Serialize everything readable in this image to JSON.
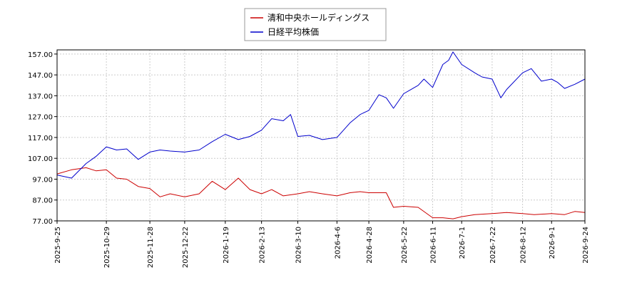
{
  "chart_data": {
    "type": "line",
    "title": "",
    "xlabel": "",
    "ylabel": "",
    "ylim": [
      77.0,
      159.0
    ],
    "yticks": [
      "77.00",
      "87.00",
      "97.00",
      "107.00",
      "117.00",
      "127.00",
      "137.00",
      "147.00",
      "157.00"
    ],
    "ytick_values": [
      77,
      87,
      97,
      107,
      117,
      127,
      137,
      147,
      157
    ],
    "xticks": [
      "2025-9-25",
      "2025-10-29",
      "2025-11-28",
      "2025-12-22",
      "2026-1-19",
      "2026-2-13",
      "2026-3-10",
      "2026-4-6",
      "2026-4-28",
      "2026-5-22",
      "2026-6-11",
      "2026-7-1",
      "2026-7-22",
      "2026-8-12",
      "2026-9-1",
      "2026-9-24"
    ],
    "grid": true,
    "legend_position": "top-center",
    "x_range": [
      "2025-9-25",
      "2026-9-24"
    ],
    "series": [
      {
        "name": "清和中央ホールディングス",
        "color": "#cc0000",
        "x": [
          "2025-9-25",
          "2025-10-5",
          "2025-10-15",
          "2025-10-22",
          "2025-10-29",
          "2025-11-5",
          "2025-11-12",
          "2025-11-20",
          "2025-11-28",
          "2025-12-5",
          "2025-12-12",
          "2025-12-22",
          "2026-1-1",
          "2026-1-10",
          "2026-1-19",
          "2026-1-28",
          "2026-2-5",
          "2026-2-13",
          "2026-2-20",
          "2026-2-28",
          "2026-3-10",
          "2026-3-18",
          "2026-3-27",
          "2026-4-6",
          "2026-4-15",
          "2026-4-22",
          "2026-4-28",
          "2026-5-10",
          "2026-5-15",
          "2026-5-22",
          "2026-6-1",
          "2026-6-11",
          "2026-6-18",
          "2026-6-25",
          "2026-7-1",
          "2026-7-10",
          "2026-7-22",
          "2026-8-1",
          "2026-8-12",
          "2026-8-20",
          "2026-9-1",
          "2026-9-10",
          "2026-9-17",
          "2026-9-24"
        ],
        "values": [
          99.5,
          101.5,
          102.5,
          101.0,
          101.5,
          97.5,
          97.0,
          93.5,
          92.5,
          88.5,
          90.0,
          88.5,
          90.0,
          96.0,
          92.0,
          97.5,
          92.0,
          90.0,
          92.0,
          89.0,
          90.0,
          91.0,
          90.0,
          89.0,
          90.5,
          91.0,
          90.5,
          90.5,
          83.5,
          84.0,
          83.5,
          78.5,
          78.5,
          78.0,
          79.0,
          80.0,
          80.5,
          81.0,
          80.5,
          80.0,
          80.5,
          80.0,
          81.5,
          81.0
        ]
      },
      {
        "name": "日経平均株価",
        "color": "#0000cc",
        "x": [
          "2025-9-25",
          "2025-10-5",
          "2025-10-15",
          "2025-10-22",
          "2025-10-29",
          "2025-11-5",
          "2025-11-12",
          "2025-11-20",
          "2025-11-28",
          "2025-12-5",
          "2025-12-12",
          "2025-12-22",
          "2026-1-1",
          "2026-1-10",
          "2026-1-19",
          "2026-1-28",
          "2026-2-5",
          "2026-2-13",
          "2026-2-20",
          "2026-2-28",
          "2026-3-5",
          "2026-3-10",
          "2026-3-18",
          "2026-3-27",
          "2026-4-6",
          "2026-4-15",
          "2026-4-22",
          "2026-4-28",
          "2026-5-5",
          "2026-5-10",
          "2026-5-15",
          "2026-5-22",
          "2026-6-1",
          "2026-6-5",
          "2026-6-11",
          "2026-6-18",
          "2026-6-22",
          "2026-6-25",
          "2026-7-1",
          "2026-7-10",
          "2026-7-15",
          "2026-7-22",
          "2026-7-28",
          "2026-8-1",
          "2026-8-12",
          "2026-8-18",
          "2026-8-25",
          "2026-9-1",
          "2026-9-5",
          "2026-9-10",
          "2026-9-17",
          "2026-9-24"
        ],
        "values": [
          99.0,
          97.5,
          104.5,
          108.0,
          112.5,
          111.0,
          111.5,
          106.5,
          110.0,
          111.0,
          110.5,
          110.0,
          111.0,
          115.0,
          118.5,
          116.0,
          117.5,
          120.5,
          126.0,
          125.0,
          128.0,
          117.5,
          118.0,
          116.0,
          117.0,
          124.0,
          128.0,
          130.0,
          137.5,
          136.0,
          131.0,
          138.0,
          142.0,
          145.0,
          141.0,
          152.0,
          154.0,
          158.0,
          152.0,
          148.0,
          146.0,
          145.0,
          136.0,
          140.0,
          148.0,
          150.0,
          144.0,
          145.0,
          143.5,
          140.5,
          142.5,
          145.0
        ]
      }
    ]
  }
}
